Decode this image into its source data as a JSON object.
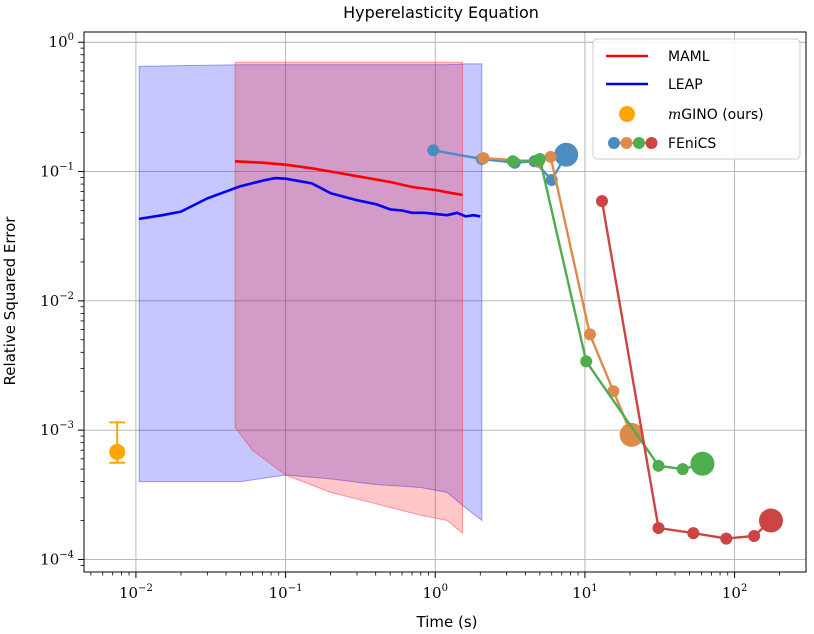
{
  "chart_data": {
    "type": "line",
    "title": "Hyperelasticity Equation",
    "xlabel": "Time (s)",
    "ylabel": "Relative Squared Error",
    "xscale": "log",
    "yscale": "log",
    "xlim": [
      0.0045,
      300
    ],
    "ylim": [
      8e-05,
      1.2
    ],
    "grid": true,
    "legend_position": "top-right",
    "x_ticks": [
      {
        "value": 0.01,
        "base": "10",
        "exp": "−2"
      },
      {
        "value": 0.1,
        "base": "10",
        "exp": "−1"
      },
      {
        "value": 1,
        "base": "10",
        "exp": "0"
      },
      {
        "value": 10,
        "base": "10",
        "exp": "1"
      },
      {
        "value": 100,
        "base": "10",
        "exp": "2"
      }
    ],
    "y_ticks": [
      {
        "value": 0.0001,
        "base": "10",
        "exp": "−4"
      },
      {
        "value": 0.001,
        "base": "10",
        "exp": "−3"
      },
      {
        "value": 0.01,
        "base": "10",
        "exp": "−2"
      },
      {
        "value": 0.1,
        "base": "10",
        "exp": "−1"
      },
      {
        "value": 1,
        "base": "10",
        "exp": "0"
      }
    ],
    "legend": [
      {
        "label": "MAML",
        "kind": "line",
        "color": "#ff0000"
      },
      {
        "label": "LEAP",
        "kind": "line",
        "color": "#0000ff"
      },
      {
        "label_italic": "m",
        "label": "GINO (ours)",
        "kind": "dot",
        "color": "#ffa500"
      },
      {
        "label": "FEniCS",
        "kind": "fenics",
        "colors": [
          "#4c8dc0",
          "#dd8a4a",
          "#4cae4c",
          "#cc4444"
        ]
      }
    ],
    "bands": [
      {
        "name": "LEAP range",
        "color": "#0000ff",
        "x": [
          0.0105,
          0.02,
          0.05,
          0.1,
          0.2,
          0.4,
          0.8,
          1.2,
          1.6,
          2.05
        ],
        "upper": [
          0.65,
          0.66,
          0.67,
          0.67,
          0.67,
          0.67,
          0.67,
          0.67,
          0.68,
          0.68
        ],
        "lower": [
          0.0004,
          0.0004,
          0.0004,
          0.00045,
          0.00042,
          0.00038,
          0.00036,
          0.00033,
          0.00025,
          0.0002
        ]
      },
      {
        "name": "MAML range",
        "color": "#ff0000",
        "x": [
          0.046,
          0.06,
          0.1,
          0.2,
          0.4,
          0.8,
          1.2,
          1.52
        ],
        "upper": [
          0.7,
          0.7,
          0.7,
          0.7,
          0.7,
          0.7,
          0.7,
          0.7
        ],
        "lower": [
          0.00105,
          0.0007,
          0.00045,
          0.00033,
          0.00027,
          0.00022,
          0.0002,
          0.00016
        ]
      }
    ],
    "series": [
      {
        "name": "MAML",
        "color": "#ff0000",
        "x": [
          0.046,
          0.07,
          0.1,
          0.15,
          0.2,
          0.3,
          0.5,
          0.7,
          1.0,
          1.3,
          1.52
        ],
        "y": [
          0.12,
          0.117,
          0.113,
          0.106,
          0.1,
          0.092,
          0.083,
          0.076,
          0.072,
          0.068,
          0.066
        ]
      },
      {
        "name": "LEAP",
        "color": "#0000ff",
        "x": [
          0.0105,
          0.015,
          0.02,
          0.03,
          0.05,
          0.07,
          0.085,
          0.1,
          0.15,
          0.2,
          0.3,
          0.4,
          0.5,
          0.6,
          0.7,
          0.85,
          1.0,
          1.2,
          1.4,
          1.6,
          1.8,
          2.0
        ],
        "y": [
          0.043,
          0.046,
          0.049,
          0.062,
          0.077,
          0.085,
          0.089,
          0.088,
          0.081,
          0.068,
          0.06,
          0.056,
          0.051,
          0.05,
          0.048,
          0.048,
          0.047,
          0.046,
          0.048,
          0.045,
          0.046,
          0.045
        ]
      }
    ],
    "mgino": {
      "x": 0.0075,
      "y": 0.00068,
      "err_low": 0.00056,
      "err_high": 0.00115,
      "color": "#ffa500"
    },
    "fenics": [
      {
        "color": "#4c8dc0",
        "x": [
          0.97,
          2.05,
          3.4,
          4.6,
          6.0,
          7.5
        ],
        "y": [
          0.146,
          0.125,
          0.117,
          0.12,
          0.086,
          0.135
        ],
        "sizes": [
          6,
          6,
          6,
          6,
          6,
          12
        ]
      },
      {
        "color": "#dd8a4a",
        "x": [
          2.1,
          4.9,
          5.9,
          10.8,
          15.5,
          20.5
        ],
        "y": [
          0.127,
          0.119,
          0.13,
          0.0055,
          0.002,
          0.00092
        ],
        "sizes": [
          6,
          6,
          6,
          6,
          6,
          12
        ]
      },
      {
        "color": "#4cae4c",
        "x": [
          3.3,
          4.8,
          5.0,
          10.2,
          31,
          45,
          61
        ],
        "y": [
          0.12,
          0.122,
          0.125,
          0.0034,
          0.00053,
          0.0005,
          0.00055
        ],
        "sizes": [
          6,
          6,
          6,
          6,
          6,
          6,
          12
        ]
      },
      {
        "color": "#cc4444",
        "x": [
          13.0,
          31,
          53,
          88,
          135,
          175
        ],
        "y": [
          0.059,
          0.000175,
          0.00016,
          0.000145,
          0.000152,
          0.0002
        ],
        "sizes": [
          6,
          6,
          6,
          6,
          6,
          12
        ]
      }
    ]
  }
}
